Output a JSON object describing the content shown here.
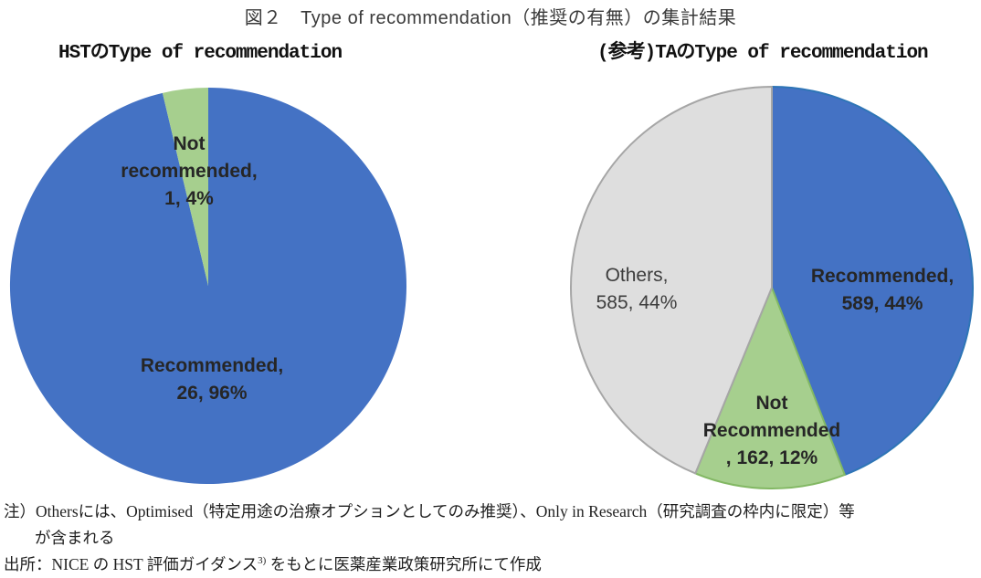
{
  "title": "図２　Type of recommendation（推奨の有無）の集計結果",
  "notes": {
    "line1": "注）Othersには、Optimised（特定用途の治療オプションとしてのみ推奨）、Only in Research（研究調査の枠内に限定）等",
    "line2": "が含まれる",
    "source_prefix": "出所：NICE の HST 評価ガイダンス",
    "source_sup": "3)",
    "source_suffix": " をもとに医薬産業政策研究所にて作成"
  },
  "colors": {
    "recommended_blue": "#4472C4",
    "recommended_blue_border": "#2E75B6",
    "not_recommended_green": "#A6CF8E",
    "not_recommended_green_border": "#83B864",
    "others_gray": "#DEDEDE",
    "others_gray_border": "#A6A6A6",
    "label_text": "#262626"
  },
  "chart_data": [
    {
      "type": "pie",
      "title": "HSTのType of recommendation",
      "start_angle_deg": 0,
      "direction": "clockwise",
      "categories": [
        "Recommended",
        "Not recommended"
      ],
      "values": [
        26,
        1
      ],
      "slices": [
        {
          "name": "Recommended",
          "value": 26,
          "pct": "96%",
          "color": "#4472C4",
          "border": "none",
          "label_lines": [
            "Recommended,",
            "26, 96%"
          ]
        },
        {
          "name": "Not recommended",
          "value": 1,
          "pct": "4%",
          "color": "#A6CF8E",
          "border": "none",
          "label_lines": [
            "Not",
            "recommended,",
            "1, 4%"
          ]
        }
      ]
    },
    {
      "type": "pie",
      "title": "(参考)TAのType of recommendation",
      "start_angle_deg": 0,
      "direction": "clockwise",
      "categories": [
        "Recommended",
        "Not Recommended",
        "Others"
      ],
      "values": [
        589,
        162,
        585
      ],
      "slices": [
        {
          "name": "Recommended",
          "value": 589,
          "pct": "44%",
          "color": "#4472C4",
          "border": "#2E75B6",
          "label_lines": [
            "Recommended,",
            "589, 44%"
          ]
        },
        {
          "name": "Not Recommended",
          "value": 162,
          "pct": "12%",
          "color": "#A6CF8E",
          "border": "#83B864",
          "label_lines": [
            "Not",
            "Recommended",
            ", 162, 12%"
          ]
        },
        {
          "name": "Others",
          "value": 585,
          "pct": "44%",
          "color": "#DEDEDE",
          "border": "#A6A6A6",
          "label_lines": [
            "Others,",
            "585, 44%"
          ]
        }
      ]
    }
  ]
}
